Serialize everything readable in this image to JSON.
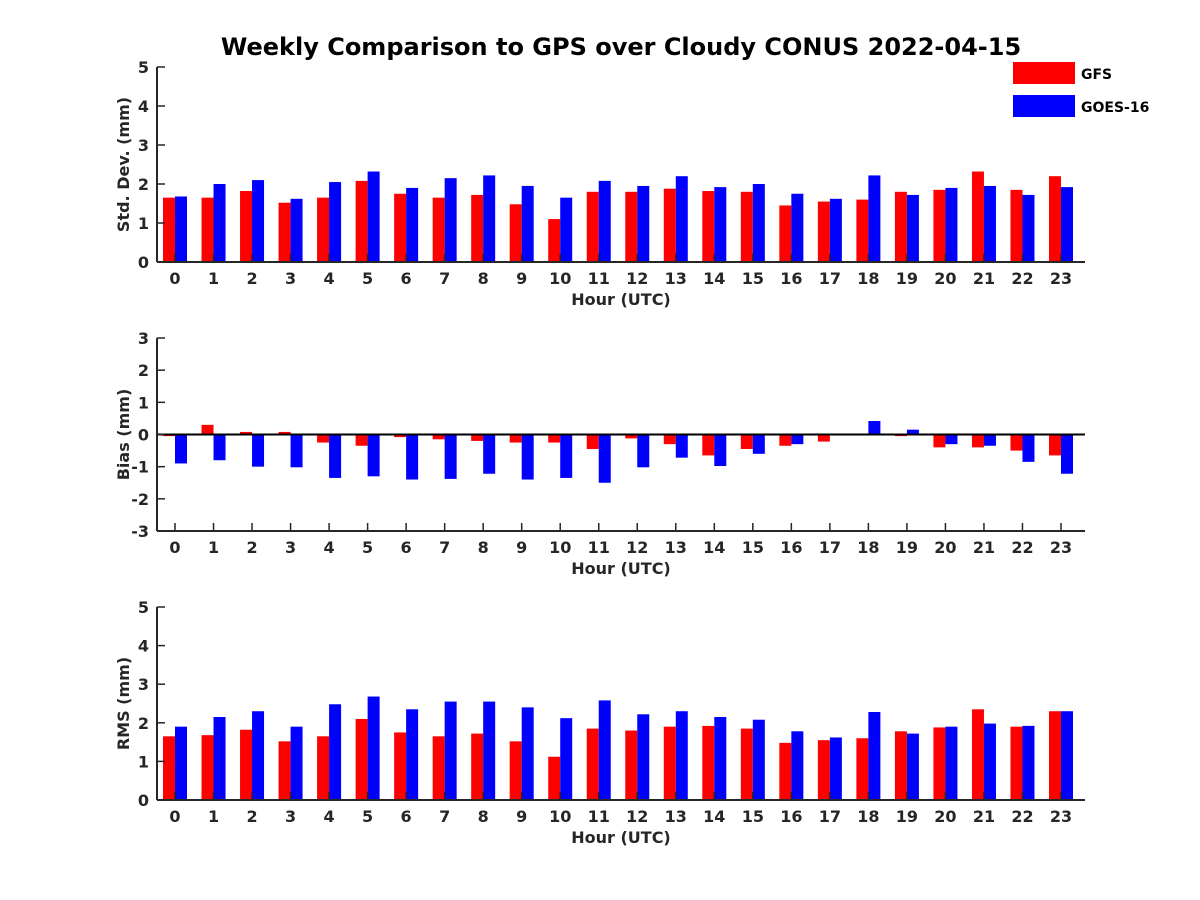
{
  "figure": {
    "title": "Weekly Comparison to GPS over Cloudy CONUS 2022-04-15"
  },
  "legend": {
    "placement": "top-right",
    "items": [
      {
        "name": "GFS",
        "color": "#ff0000"
      },
      {
        "name": "GOES-16",
        "color": "#0000ff"
      }
    ]
  },
  "chart_data": [
    {
      "type": "bar",
      "xlabel": "Hour (UTC)",
      "ylabel": "Std. Dev. (mm)",
      "ylim": [
        0,
        5
      ],
      "yticks": [
        0,
        1,
        2,
        3,
        4,
        5
      ],
      "categories": [
        "0",
        "1",
        "2",
        "3",
        "4",
        "5",
        "6",
        "7",
        "8",
        "9",
        "10",
        "11",
        "12",
        "13",
        "14",
        "15",
        "16",
        "17",
        "18",
        "19",
        "20",
        "21",
        "22",
        "23"
      ],
      "series": [
        {
          "name": "GFS",
          "color": "#ff0000",
          "values": [
            1.65,
            1.65,
            1.82,
            1.52,
            1.65,
            2.08,
            1.75,
            1.65,
            1.72,
            1.48,
            1.1,
            1.8,
            1.8,
            1.88,
            1.82,
            1.8,
            1.45,
            1.55,
            1.6,
            1.8,
            1.85,
            2.32,
            1.85,
            2.2
          ]
        },
        {
          "name": "GOES-16",
          "color": "#0000ff",
          "values": [
            1.68,
            2.0,
            2.1,
            1.62,
            2.05,
            2.32,
            1.9,
            2.15,
            2.22,
            1.95,
            1.65,
            2.08,
            1.95,
            2.2,
            1.92,
            2.0,
            1.75,
            1.62,
            2.22,
            1.72,
            1.9,
            1.95,
            1.72,
            1.92
          ]
        }
      ]
    },
    {
      "type": "bar",
      "xlabel": "Hour (UTC)",
      "ylabel": "Bias (mm)",
      "ylim": [
        -3,
        3
      ],
      "yticks": [
        -3,
        -2,
        -1,
        0,
        1,
        2,
        3
      ],
      "categories": [
        "0",
        "1",
        "2",
        "3",
        "4",
        "5",
        "6",
        "7",
        "8",
        "9",
        "10",
        "11",
        "12",
        "13",
        "14",
        "15",
        "16",
        "17",
        "18",
        "19",
        "20",
        "21",
        "22",
        "23"
      ],
      "series": [
        {
          "name": "GFS",
          "color": "#ff0000",
          "values": [
            -0.05,
            0.3,
            0.08,
            0.08,
            -0.25,
            -0.35,
            -0.08,
            -0.15,
            -0.2,
            -0.25,
            -0.25,
            -0.45,
            -0.12,
            -0.3,
            -0.65,
            -0.45,
            -0.35,
            -0.22,
            -0.02,
            -0.05,
            -0.4,
            -0.4,
            -0.5,
            -0.65
          ]
        },
        {
          "name": "GOES-16",
          "color": "#0000ff",
          "values": [
            -0.9,
            -0.8,
            -1.0,
            -1.02,
            -1.35,
            -1.3,
            -1.4,
            -1.38,
            -1.22,
            -1.4,
            -1.35,
            -1.5,
            -1.02,
            -0.72,
            -0.98,
            -0.6,
            -0.3,
            0.02,
            0.42,
            0.15,
            -0.3,
            -0.35,
            -0.85,
            -1.22
          ]
        }
      ]
    },
    {
      "type": "bar",
      "xlabel": "Hour (UTC)",
      "ylabel": "RMS (mm)",
      "ylim": [
        0,
        5
      ],
      "yticks": [
        0,
        1,
        2,
        3,
        4,
        5
      ],
      "categories": [
        "0",
        "1",
        "2",
        "3",
        "4",
        "5",
        "6",
        "7",
        "8",
        "9",
        "10",
        "11",
        "12",
        "13",
        "14",
        "15",
        "16",
        "17",
        "18",
        "19",
        "20",
        "21",
        "22",
        "23"
      ],
      "series": [
        {
          "name": "GFS",
          "color": "#ff0000",
          "values": [
            1.65,
            1.68,
            1.82,
            1.52,
            1.65,
            2.1,
            1.75,
            1.65,
            1.72,
            1.52,
            1.12,
            1.85,
            1.8,
            1.9,
            1.92,
            1.85,
            1.48,
            1.55,
            1.6,
            1.78,
            1.88,
            2.35,
            1.9,
            2.3
          ]
        },
        {
          "name": "GOES-16",
          "color": "#0000ff",
          "values": [
            1.9,
            2.15,
            2.3,
            1.9,
            2.48,
            2.68,
            2.35,
            2.55,
            2.55,
            2.4,
            2.12,
            2.58,
            2.22,
            2.3,
            2.15,
            2.08,
            1.78,
            1.62,
            2.28,
            1.72,
            1.9,
            1.98,
            1.92,
            2.3
          ]
        }
      ]
    }
  ]
}
